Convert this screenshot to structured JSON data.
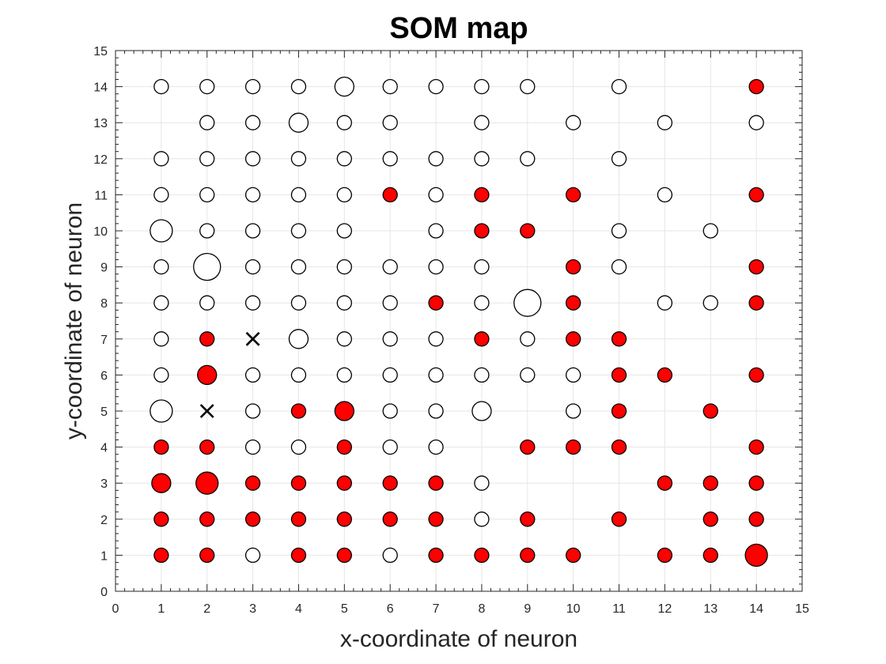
{
  "chart_data": {
    "type": "scatter",
    "title": "SOM map",
    "xlabel": "x-coordinate of neuron",
    "ylabel": "y-coordinate of neuron",
    "xlim": [
      0,
      15
    ],
    "ylim": [
      0,
      15
    ],
    "xticks": [
      "0",
      "1",
      "2",
      "3",
      "4",
      "5",
      "6",
      "7",
      "8",
      "9",
      "10",
      "11",
      "12",
      "13",
      "14",
      "15"
    ],
    "yticks": [
      "0",
      "1",
      "2",
      "3",
      "4",
      "5",
      "6",
      "7",
      "8",
      "9",
      "10",
      "11",
      "12",
      "13",
      "14",
      "15"
    ],
    "grid": true,
    "colors": {
      "red": "#ff0000",
      "white": "#ffffff",
      "edge": "#000000",
      "grid": "#e6e6e6"
    },
    "neurons": [
      {
        "x": 1,
        "y": 14,
        "c": "white",
        "s": "s"
      },
      {
        "x": 2,
        "y": 14,
        "c": "white",
        "s": "s"
      },
      {
        "x": 3,
        "y": 14,
        "c": "white",
        "s": "s"
      },
      {
        "x": 4,
        "y": 14,
        "c": "white",
        "s": "s"
      },
      {
        "x": 5,
        "y": 14,
        "c": "white",
        "s": "m"
      },
      {
        "x": 6,
        "y": 14,
        "c": "white",
        "s": "s"
      },
      {
        "x": 7,
        "y": 14,
        "c": "white",
        "s": "s"
      },
      {
        "x": 8,
        "y": 14,
        "c": "white",
        "s": "s"
      },
      {
        "x": 9,
        "y": 14,
        "c": "white",
        "s": "s"
      },
      {
        "x": 11,
        "y": 14,
        "c": "white",
        "s": "s"
      },
      {
        "x": 14,
        "y": 14,
        "c": "red",
        "s": "s"
      },
      {
        "x": 2,
        "y": 13,
        "c": "white",
        "s": "s"
      },
      {
        "x": 3,
        "y": 13,
        "c": "white",
        "s": "s"
      },
      {
        "x": 4,
        "y": 13,
        "c": "white",
        "s": "m"
      },
      {
        "x": 5,
        "y": 13,
        "c": "white",
        "s": "s"
      },
      {
        "x": 6,
        "y": 13,
        "c": "white",
        "s": "s"
      },
      {
        "x": 8,
        "y": 13,
        "c": "white",
        "s": "s"
      },
      {
        "x": 10,
        "y": 13,
        "c": "white",
        "s": "s"
      },
      {
        "x": 12,
        "y": 13,
        "c": "white",
        "s": "s"
      },
      {
        "x": 14,
        "y": 13,
        "c": "white",
        "s": "s"
      },
      {
        "x": 1,
        "y": 12,
        "c": "white",
        "s": "s"
      },
      {
        "x": 2,
        "y": 12,
        "c": "white",
        "s": "s"
      },
      {
        "x": 3,
        "y": 12,
        "c": "white",
        "s": "s"
      },
      {
        "x": 4,
        "y": 12,
        "c": "white",
        "s": "s"
      },
      {
        "x": 5,
        "y": 12,
        "c": "white",
        "s": "s"
      },
      {
        "x": 6,
        "y": 12,
        "c": "white",
        "s": "s"
      },
      {
        "x": 7,
        "y": 12,
        "c": "white",
        "s": "s"
      },
      {
        "x": 8,
        "y": 12,
        "c": "white",
        "s": "s"
      },
      {
        "x": 9,
        "y": 12,
        "c": "white",
        "s": "s"
      },
      {
        "x": 11,
        "y": 12,
        "c": "white",
        "s": "s"
      },
      {
        "x": 1,
        "y": 11,
        "c": "white",
        "s": "s"
      },
      {
        "x": 2,
        "y": 11,
        "c": "white",
        "s": "s"
      },
      {
        "x": 3,
        "y": 11,
        "c": "white",
        "s": "s"
      },
      {
        "x": 4,
        "y": 11,
        "c": "white",
        "s": "s"
      },
      {
        "x": 5,
        "y": 11,
        "c": "white",
        "s": "s"
      },
      {
        "x": 6,
        "y": 11,
        "c": "red",
        "s": "s"
      },
      {
        "x": 7,
        "y": 11,
        "c": "white",
        "s": "s"
      },
      {
        "x": 8,
        "y": 11,
        "c": "red",
        "s": "s"
      },
      {
        "x": 10,
        "y": 11,
        "c": "red",
        "s": "s"
      },
      {
        "x": 12,
        "y": 11,
        "c": "white",
        "s": "s"
      },
      {
        "x": 14,
        "y": 11,
        "c": "red",
        "s": "s"
      },
      {
        "x": 1,
        "y": 10,
        "c": "white",
        "s": "l"
      },
      {
        "x": 2,
        "y": 10,
        "c": "white",
        "s": "s"
      },
      {
        "x": 3,
        "y": 10,
        "c": "white",
        "s": "s"
      },
      {
        "x": 4,
        "y": 10,
        "c": "white",
        "s": "s"
      },
      {
        "x": 5,
        "y": 10,
        "c": "white",
        "s": "s"
      },
      {
        "x": 7,
        "y": 10,
        "c": "white",
        "s": "s"
      },
      {
        "x": 8,
        "y": 10,
        "c": "red",
        "s": "s"
      },
      {
        "x": 9,
        "y": 10,
        "c": "red",
        "s": "s"
      },
      {
        "x": 11,
        "y": 10,
        "c": "white",
        "s": "s"
      },
      {
        "x": 13,
        "y": 10,
        "c": "white",
        "s": "s"
      },
      {
        "x": 1,
        "y": 9,
        "c": "white",
        "s": "s"
      },
      {
        "x": 2,
        "y": 9,
        "c": "white",
        "s": "xl"
      },
      {
        "x": 3,
        "y": 9,
        "c": "white",
        "s": "s"
      },
      {
        "x": 4,
        "y": 9,
        "c": "white",
        "s": "s"
      },
      {
        "x": 5,
        "y": 9,
        "c": "white",
        "s": "s"
      },
      {
        "x": 6,
        "y": 9,
        "c": "white",
        "s": "s"
      },
      {
        "x": 7,
        "y": 9,
        "c": "white",
        "s": "s"
      },
      {
        "x": 8,
        "y": 9,
        "c": "white",
        "s": "s"
      },
      {
        "x": 10,
        "y": 9,
        "c": "red",
        "s": "s"
      },
      {
        "x": 11,
        "y": 9,
        "c": "white",
        "s": "s"
      },
      {
        "x": 14,
        "y": 9,
        "c": "red",
        "s": "s"
      },
      {
        "x": 1,
        "y": 8,
        "c": "white",
        "s": "s"
      },
      {
        "x": 2,
        "y": 8,
        "c": "white",
        "s": "s"
      },
      {
        "x": 3,
        "y": 8,
        "c": "white",
        "s": "s"
      },
      {
        "x": 4,
        "y": 8,
        "c": "white",
        "s": "s"
      },
      {
        "x": 5,
        "y": 8,
        "c": "white",
        "s": "s"
      },
      {
        "x": 6,
        "y": 8,
        "c": "white",
        "s": "s"
      },
      {
        "x": 7,
        "y": 8,
        "c": "red",
        "s": "s"
      },
      {
        "x": 8,
        "y": 8,
        "c": "white",
        "s": "s"
      },
      {
        "x": 9,
        "y": 8,
        "c": "white",
        "s": "xl"
      },
      {
        "x": 10,
        "y": 8,
        "c": "red",
        "s": "s"
      },
      {
        "x": 12,
        "y": 8,
        "c": "white",
        "s": "s"
      },
      {
        "x": 13,
        "y": 8,
        "c": "white",
        "s": "s"
      },
      {
        "x": 14,
        "y": 8,
        "c": "red",
        "s": "s"
      },
      {
        "x": 1,
        "y": 7,
        "c": "white",
        "s": "s"
      },
      {
        "x": 2,
        "y": 7,
        "c": "red",
        "s": "s"
      },
      {
        "x": 4,
        "y": 7,
        "c": "white",
        "s": "m"
      },
      {
        "x": 5,
        "y": 7,
        "c": "white",
        "s": "s"
      },
      {
        "x": 6,
        "y": 7,
        "c": "white",
        "s": "s"
      },
      {
        "x": 7,
        "y": 7,
        "c": "white",
        "s": "s"
      },
      {
        "x": 8,
        "y": 7,
        "c": "red",
        "s": "s"
      },
      {
        "x": 9,
        "y": 7,
        "c": "white",
        "s": "s"
      },
      {
        "x": 10,
        "y": 7,
        "c": "red",
        "s": "s"
      },
      {
        "x": 11,
        "y": 7,
        "c": "red",
        "s": "s"
      },
      {
        "x": 1,
        "y": 6,
        "c": "white",
        "s": "s"
      },
      {
        "x": 2,
        "y": 6,
        "c": "red",
        "s": "m"
      },
      {
        "x": 3,
        "y": 6,
        "c": "white",
        "s": "s"
      },
      {
        "x": 4,
        "y": 6,
        "c": "white",
        "s": "s"
      },
      {
        "x": 5,
        "y": 6,
        "c": "white",
        "s": "s"
      },
      {
        "x": 6,
        "y": 6,
        "c": "white",
        "s": "s"
      },
      {
        "x": 7,
        "y": 6,
        "c": "white",
        "s": "s"
      },
      {
        "x": 8,
        "y": 6,
        "c": "white",
        "s": "s"
      },
      {
        "x": 9,
        "y": 6,
        "c": "white",
        "s": "s"
      },
      {
        "x": 10,
        "y": 6,
        "c": "white",
        "s": "s"
      },
      {
        "x": 11,
        "y": 6,
        "c": "red",
        "s": "s"
      },
      {
        "x": 12,
        "y": 6,
        "c": "red",
        "s": "s"
      },
      {
        "x": 14,
        "y": 6,
        "c": "red",
        "s": "s"
      },
      {
        "x": 1,
        "y": 5,
        "c": "white",
        "s": "l"
      },
      {
        "x": 3,
        "y": 5,
        "c": "white",
        "s": "s"
      },
      {
        "x": 4,
        "y": 5,
        "c": "red",
        "s": "s"
      },
      {
        "x": 5,
        "y": 5,
        "c": "red",
        "s": "m"
      },
      {
        "x": 6,
        "y": 5,
        "c": "white",
        "s": "s"
      },
      {
        "x": 7,
        "y": 5,
        "c": "white",
        "s": "s"
      },
      {
        "x": 8,
        "y": 5,
        "c": "white",
        "s": "m"
      },
      {
        "x": 10,
        "y": 5,
        "c": "white",
        "s": "s"
      },
      {
        "x": 11,
        "y": 5,
        "c": "red",
        "s": "s"
      },
      {
        "x": 13,
        "y": 5,
        "c": "red",
        "s": "s"
      },
      {
        "x": 1,
        "y": 4,
        "c": "red",
        "s": "s"
      },
      {
        "x": 2,
        "y": 4,
        "c": "red",
        "s": "s"
      },
      {
        "x": 3,
        "y": 4,
        "c": "white",
        "s": "s"
      },
      {
        "x": 4,
        "y": 4,
        "c": "white",
        "s": "s"
      },
      {
        "x": 5,
        "y": 4,
        "c": "red",
        "s": "s"
      },
      {
        "x": 6,
        "y": 4,
        "c": "white",
        "s": "s"
      },
      {
        "x": 7,
        "y": 4,
        "c": "white",
        "s": "s"
      },
      {
        "x": 9,
        "y": 4,
        "c": "red",
        "s": "s"
      },
      {
        "x": 10,
        "y": 4,
        "c": "red",
        "s": "s"
      },
      {
        "x": 11,
        "y": 4,
        "c": "red",
        "s": "s"
      },
      {
        "x": 14,
        "y": 4,
        "c": "red",
        "s": "s"
      },
      {
        "x": 1,
        "y": 3,
        "c": "red",
        "s": "m"
      },
      {
        "x": 2,
        "y": 3,
        "c": "red",
        "s": "l"
      },
      {
        "x": 3,
        "y": 3,
        "c": "red",
        "s": "s"
      },
      {
        "x": 4,
        "y": 3,
        "c": "red",
        "s": "s"
      },
      {
        "x": 5,
        "y": 3,
        "c": "red",
        "s": "s"
      },
      {
        "x": 6,
        "y": 3,
        "c": "red",
        "s": "s"
      },
      {
        "x": 7,
        "y": 3,
        "c": "red",
        "s": "s"
      },
      {
        "x": 8,
        "y": 3,
        "c": "white",
        "s": "s"
      },
      {
        "x": 12,
        "y": 3,
        "c": "red",
        "s": "s"
      },
      {
        "x": 13,
        "y": 3,
        "c": "red",
        "s": "s"
      },
      {
        "x": 14,
        "y": 3,
        "c": "red",
        "s": "s"
      },
      {
        "x": 1,
        "y": 2,
        "c": "red",
        "s": "s"
      },
      {
        "x": 2,
        "y": 2,
        "c": "red",
        "s": "s"
      },
      {
        "x": 3,
        "y": 2,
        "c": "red",
        "s": "s"
      },
      {
        "x": 4,
        "y": 2,
        "c": "red",
        "s": "s"
      },
      {
        "x": 5,
        "y": 2,
        "c": "red",
        "s": "s"
      },
      {
        "x": 6,
        "y": 2,
        "c": "red",
        "s": "s"
      },
      {
        "x": 7,
        "y": 2,
        "c": "red",
        "s": "s"
      },
      {
        "x": 8,
        "y": 2,
        "c": "white",
        "s": "s"
      },
      {
        "x": 9,
        "y": 2,
        "c": "red",
        "s": "s"
      },
      {
        "x": 11,
        "y": 2,
        "c": "red",
        "s": "s"
      },
      {
        "x": 13,
        "y": 2,
        "c": "red",
        "s": "s"
      },
      {
        "x": 14,
        "y": 2,
        "c": "red",
        "s": "s"
      },
      {
        "x": 1,
        "y": 1,
        "c": "red",
        "s": "s"
      },
      {
        "x": 2,
        "y": 1,
        "c": "red",
        "s": "s"
      },
      {
        "x": 3,
        "y": 1,
        "c": "white",
        "s": "s"
      },
      {
        "x": 4,
        "y": 1,
        "c": "red",
        "s": "s"
      },
      {
        "x": 5,
        "y": 1,
        "c": "red",
        "s": "s"
      },
      {
        "x": 6,
        "y": 1,
        "c": "white",
        "s": "s"
      },
      {
        "x": 7,
        "y": 1,
        "c": "red",
        "s": "s"
      },
      {
        "x": 8,
        "y": 1,
        "c": "red",
        "s": "s"
      },
      {
        "x": 9,
        "y": 1,
        "c": "red",
        "s": "s"
      },
      {
        "x": 10,
        "y": 1,
        "c": "red",
        "s": "s"
      },
      {
        "x": 12,
        "y": 1,
        "c": "red",
        "s": "s"
      },
      {
        "x": 13,
        "y": 1,
        "c": "red",
        "s": "s"
      },
      {
        "x": 14,
        "y": 1,
        "c": "red",
        "s": "l"
      }
    ],
    "crosses": [
      {
        "x": 3,
        "y": 7
      },
      {
        "x": 2,
        "y": 5
      }
    ]
  }
}
